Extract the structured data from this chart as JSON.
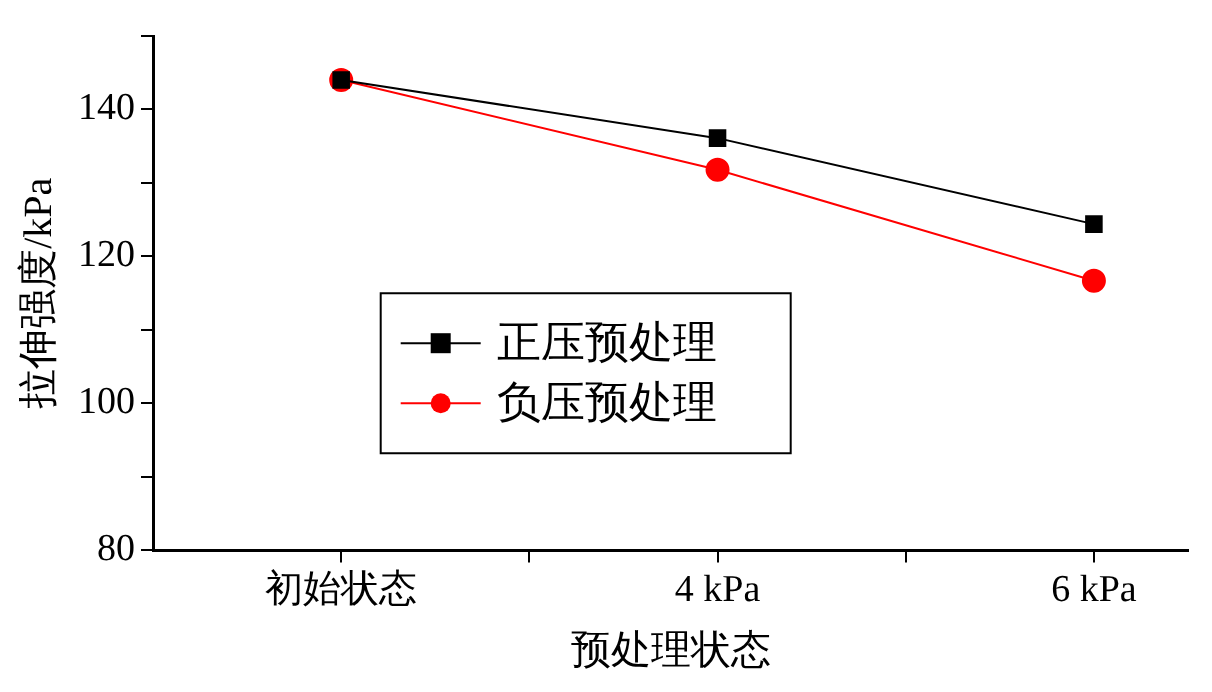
{
  "chart_data": {
    "type": "line",
    "xlabel": "预处理状态",
    "ylabel": "拉伸强度/kPa",
    "categories": [
      "初始状态",
      "4 kPa",
      "6 kPa"
    ],
    "series": [
      {
        "name": "正压预处理",
        "color": "#000000",
        "marker": "square",
        "values": [
          144,
          136.1,
          124.4
        ]
      },
      {
        "name": "负压预处理",
        "color": "#ff0000",
        "marker": "circle",
        "values": [
          144,
          131.8,
          116.7
        ]
      }
    ],
    "ylim": [
      80,
      150
    ],
    "yticks": [
      80,
      {
        "value": 90,
        "label": null
      },
      100,
      {
        "value": 110,
        "label": null
      },
      120,
      {
        "value": 130,
        "label": null
      },
      140,
      {
        "value": 150,
        "label": null
      }
    ],
    "grid": false,
    "legend": "center left",
    "line_style": "solid"
  }
}
